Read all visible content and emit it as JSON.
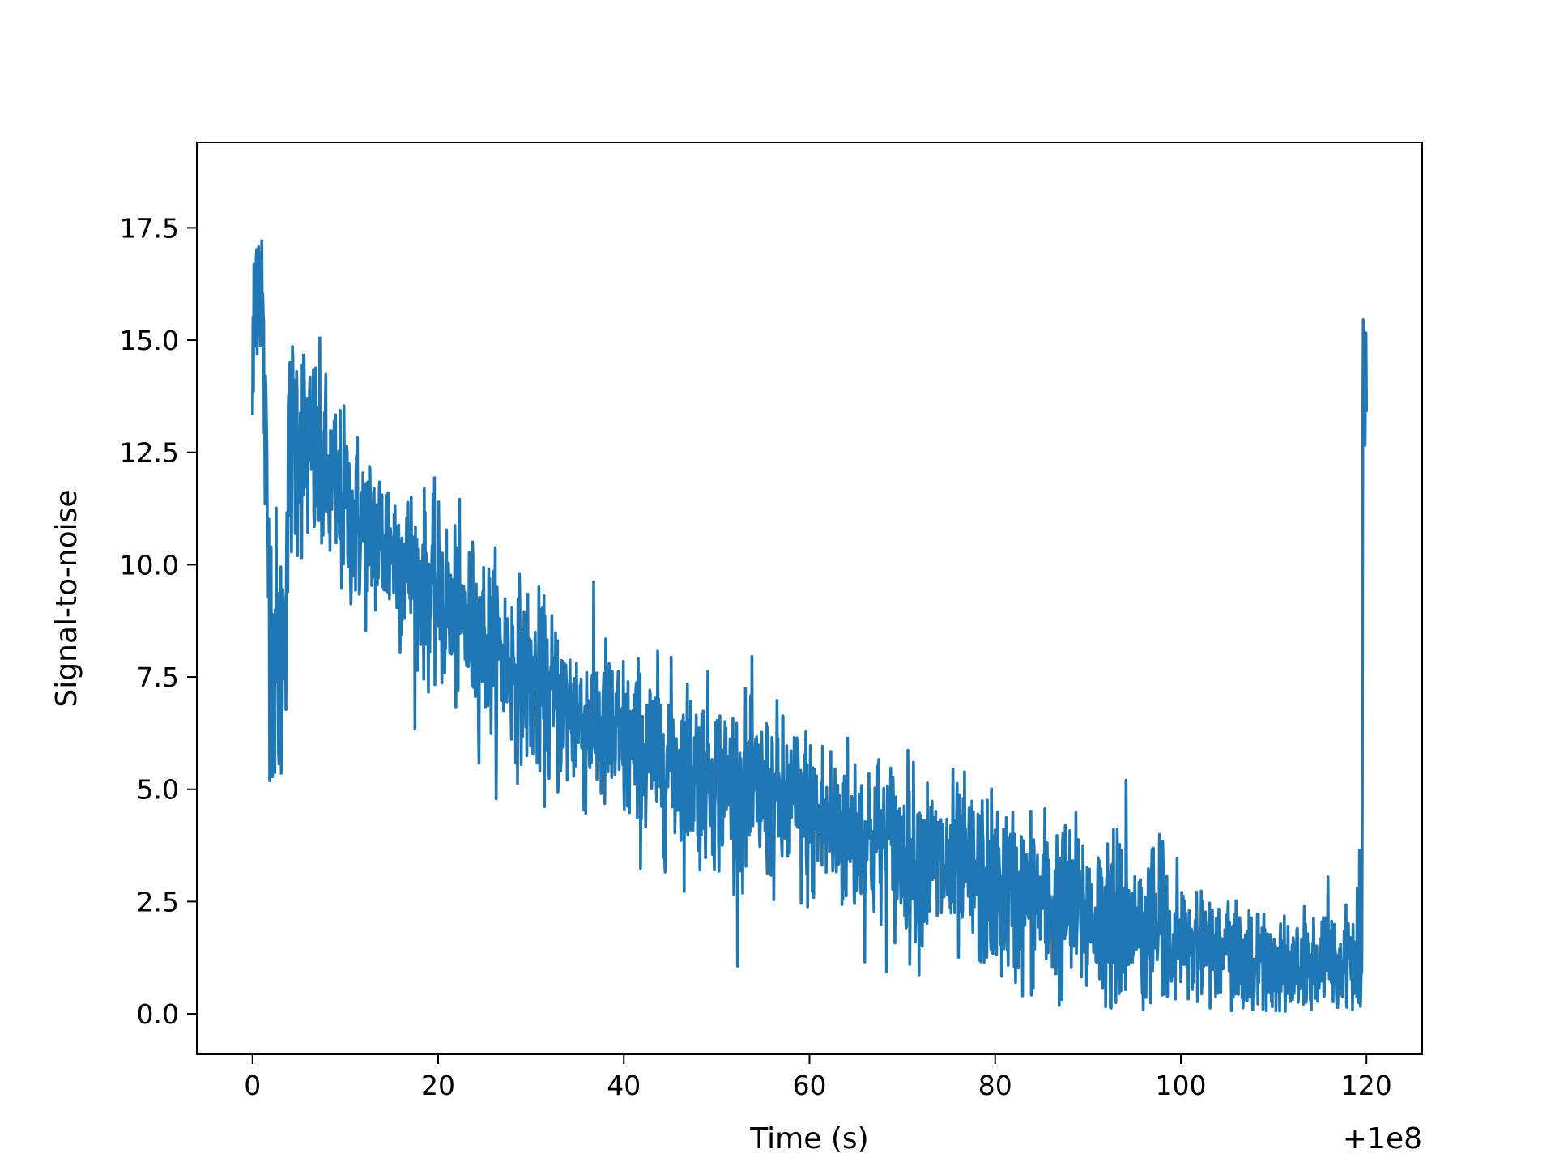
{
  "chart_data": {
    "type": "line",
    "title": "",
    "xlabel": "Time (s)",
    "ylabel": "Signal-to-noise",
    "x_offset_label": "+1e8",
    "xlim": [
      -6,
      126
    ],
    "ylim": [
      -0.9,
      19.4
    ],
    "x_ticks": [
      0,
      20,
      40,
      60,
      80,
      100,
      120
    ],
    "x_tick_labels": [
      "0",
      "20",
      "40",
      "60",
      "80",
      "100",
      "120"
    ],
    "y_ticks": [
      0,
      2.5,
      5,
      7.5,
      10,
      12.5,
      15,
      17.5
    ],
    "y_tick_labels": [
      "0.0",
      "2.5",
      "5.0",
      "7.5",
      "10.0",
      "12.5",
      "15.0",
      "17.5"
    ],
    "grid": false,
    "line_color": "#1f77b4",
    "series": [
      {
        "x": [
          0,
          0.5,
          1,
          1.5,
          2,
          2.5,
          3,
          3.5,
          4,
          5,
          6,
          7,
          8,
          10,
          12,
          15,
          18,
          20,
          22,
          25,
          28,
          30,
          32,
          35,
          38,
          40,
          42,
          45,
          48,
          50,
          52,
          55,
          58,
          60,
          62,
          65,
          68,
          70,
          72,
          75,
          78,
          80,
          82,
          85,
          88,
          90,
          92,
          95,
          98,
          100,
          102,
          105,
          108,
          110,
          112,
          115,
          118,
          119.5,
          119.7,
          120
        ],
        "values": [
          13.8,
          17.0,
          16.2,
          11.5,
          8.5,
          8.0,
          7.5,
          9.0,
          12.5,
          13.0,
          12.5,
          12.2,
          11.8,
          11.2,
          10.8,
          10.4,
          9.6,
          9.2,
          8.8,
          8.3,
          7.8,
          7.4,
          7.0,
          6.6,
          6.3,
          6.0,
          5.8,
          5.6,
          5.4,
          5.2,
          5.0,
          4.8,
          4.6,
          4.4,
          4.2,
          4.0,
          3.8,
          3.6,
          3.4,
          3.2,
          3.0,
          2.8,
          2.6,
          2.5,
          2.3,
          2.2,
          2.1,
          1.9,
          1.8,
          1.6,
          1.4,
          1.3,
          1.2,
          1.1,
          1.0,
          1.0,
          1.1,
          1.2,
          14.0,
          14.5
        ],
        "noise_amplitude": [
          2.0,
          1.5,
          1.5,
          2.0,
          2.2,
          2.2,
          2.0,
          2.0,
          1.8,
          1.8,
          1.6,
          1.6,
          1.5,
          1.4,
          1.3,
          1.3,
          1.3,
          1.3,
          1.3,
          1.3,
          1.3,
          1.3,
          1.3,
          1.3,
          1.3,
          1.3,
          1.3,
          1.3,
          1.3,
          1.3,
          1.3,
          1.3,
          1.3,
          1.3,
          1.3,
          1.3,
          1.3,
          1.3,
          1.3,
          1.3,
          1.3,
          1.3,
          1.3,
          1.3,
          1.3,
          1.3,
          1.3,
          1.2,
          1.1,
          1.0,
          0.9,
          0.8,
          0.8,
          0.8,
          0.8,
          0.8,
          0.9,
          1.0,
          1.2,
          1.0
        ]
      }
    ]
  }
}
